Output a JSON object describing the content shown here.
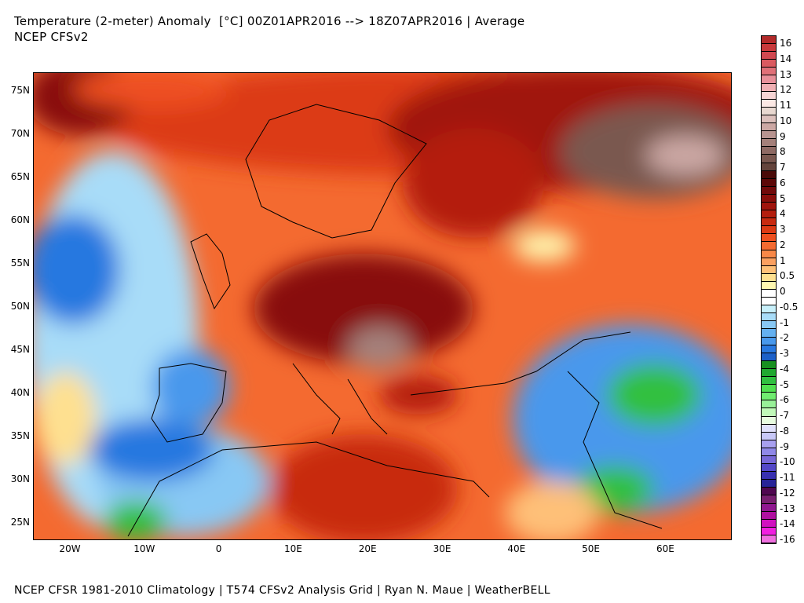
{
  "title": "Temperature (2-meter) Anomaly  [°C] 00Z01APR2016 --> 18Z07APR2016 | Average",
  "subtitle": "NCEP CFSv2",
  "footer": "NCEP CFSR 1981-2010 Climatology | T574 CFSv2 Analysis Grid | Ryan N. Maue | WeatherBELL",
  "lat_labels": [
    "75N",
    "70N",
    "65N",
    "60N",
    "55N",
    "50N",
    "45N",
    "40N",
    "35N",
    "30N",
    "25N"
  ],
  "lon_labels": [
    "20W",
    "10W",
    "0",
    "10E",
    "20E",
    "30E",
    "40E",
    "50E",
    "60E"
  ],
  "colorbar": {
    "labels": [
      "16",
      "14",
      "13",
      "12",
      "11",
      "10",
      "9",
      "8",
      "7",
      "6",
      "5",
      "4",
      "3",
      "2",
      "1",
      "0.5",
      "0",
      "-0.5",
      "-1",
      "-2",
      "-3",
      "-4",
      "-5",
      "-6",
      "-7",
      "-8",
      "-9",
      "-10",
      "-11",
      "-12",
      "-13",
      "-14",
      "-16"
    ],
    "colors": [
      "#b22a2a",
      "#c83a3c",
      "#d04850",
      "#da5a60",
      "#e07078",
      "#e8909a",
      "#f0b0b4",
      "#f6d4d4",
      "#fbe8e4",
      "#e8d8d0",
      "#dcc0bc",
      "#cca8a4",
      "#b89490",
      "#a4807a",
      "#8e6a64",
      "#7a5850",
      "#64443c",
      "#4a0a08",
      "#5c0808",
      "#700a0a",
      "#880e0a",
      "#a0140c",
      "#b41e0e",
      "#c82a10",
      "#dc3a14",
      "#ee5020",
      "#f46a30",
      "#f88848",
      "#fba060",
      "#fec078",
      "#fee090",
      "#fff8b0",
      "#ffffff",
      "#ffffff",
      "#c8f0fa",
      "#a8dcf8",
      "#88c8f4",
      "#64b0f0",
      "#4898ec",
      "#2878e0",
      "#1c60c8",
      "#189020",
      "#20a830",
      "#30c040",
      "#50e050",
      "#70ec70",
      "#98f098",
      "#c0f8b8",
      "#e8fce0",
      "#e0e0fc",
      "#c8c8f8",
      "#a8a0f0",
      "#9088e8",
      "#7868d8",
      "#5448c8",
      "#3830b0",
      "#282498",
      "#500850",
      "#782070",
      "#901890",
      "#b010a0",
      "#d010c0",
      "#f020e0",
      "#f070e0"
    ]
  }
}
